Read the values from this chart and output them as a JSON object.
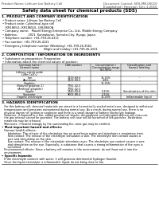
{
  "bg_color": "#ffffff",
  "header_left": "Product Name: Lithium Ion Battery Cell",
  "header_right_line1": "Document Control: SDS-MB-00010",
  "header_right_line2": "Established / Revision: Dec.1.2016",
  "title": "Safety data sheet for chemical products (SDS)",
  "section1_title": "1. PRODUCT AND COMPANY IDENTIFICATION",
  "section1_lines": [
    "• Product name: Lithium Ion Battery Cell",
    "• Product code: Cylindrical-type cell",
    "   IXR18650, IXR18650L, IXR-B650A",
    "• Company name:   Maxell Energy Enterprise Co., Ltd., Mobile Energy Company",
    "• Address:            2021  Kannakuran, Sumoto-City, Hyogo, Japan",
    "• Telephone number: +81-799-26-4111",
    "• Fax number: +81-799-26-4121",
    "• Emergency telephone number (Weekday) +81-799-26-3562",
    "                                              (Night and holiday) +81-799-26-4101"
  ],
  "section2_title": "2. COMPOSITION / INFORMATION ON INGREDIENTS",
  "section2_intro": "• Substance or preparation: Preparation",
  "section2_sub": "• Information about the chemical nature of product:",
  "table_col_names_r1": [
    "Common name /",
    "CAS number",
    "Concentration /",
    "Classification and"
  ],
  "table_col_names_r2": [
    "General name",
    "",
    "Concentration range",
    "hazard labeling"
  ],
  "table_col_names_r3": [
    "",
    "",
    "(10-90%)",
    ""
  ],
  "table_rows": [
    [
      "Lithium cobalt oxide",
      "-",
      "-",
      ""
    ],
    [
      "(LiMn·Co/O₂)",
      "",
      "",
      ""
    ],
    [
      "Iron",
      "7439-89-6",
      "18-25%",
      "-"
    ],
    [
      "Aluminum",
      "7429-90-5",
      "2-8%",
      "-"
    ],
    [
      "Graphite",
      "",
      "10-25%",
      ""
    ],
    [
      "(Natural graphite-1)",
      "7782-42-5",
      "",
      ""
    ],
    [
      "(Artificial graphite)",
      "7782-42-5",
      "",
      ""
    ],
    [
      "Copper",
      "7440-50-8",
      "5-10%",
      "Sensitization of the skin"
    ],
    [
      "Separator",
      "9002-88-4",
      "3-10%",
      ""
    ],
    [
      "Organic electrolyte",
      "-",
      "10-25%",
      "Inflammable liquid"
    ]
  ],
  "table_row_borders": [
    1,
    3,
    4,
    7,
    8,
    9
  ],
  "section3_title": "3. HAZARDS IDENTIFICATION",
  "section3_para": [
    "   For this battery cell, chemical materials are stored in a hermetically sealed metal case, designed to withstand",
    "   temperatures and pressures encountered during normal use. As a result, during normal use, there is no",
    "   physical danger of ignition or explosion and there is a small danger of battery electrolyte leakage.",
    "   However, if exposed to a fire, added mechanical shocks, decomposed, uninterrupted without any miss-use,",
    "   the gas release cannot be operated. The battery cell case will be breached of fire-particles. Hazardous",
    "   materials may be released.",
    "   Moreover, if heated strongly by the surrounding fire, toxic gas may be emitted."
  ],
  "section3_bullet1": "• Most important hazard and effects:",
  "section3_human": "  Human health effects:",
  "section3_human_lines": [
    "     Inhalation: The release of the electrolyte has an anesthesia action and stimulates a respiratory tract.",
    "     Skin contact: The release of the electrolyte stimulates a skin. The electrolyte skin contact causes a",
    "     sore and stimulation on the skin.",
    "     Eye contact: The release of the electrolyte stimulates eyes. The electrolyte eye contact causes a sore",
    "     and stimulation on the eye. Especially, a substance that causes a strong inflammation of the eyes is",
    "     contained."
  ],
  "section3_env": "  Environmental effects: Since a battery cell remains in the environment, do not throw out it into the",
  "section3_env2": "  environment.",
  "section3_bullet2": "• Specific hazards:",
  "section3_spec": [
    "  If the electrolyte contacts with water, it will generate detrimental hydrogen fluoride.",
    "  Since the liquid electrolyte is inflammable liquid, do not bring close to fire."
  ]
}
